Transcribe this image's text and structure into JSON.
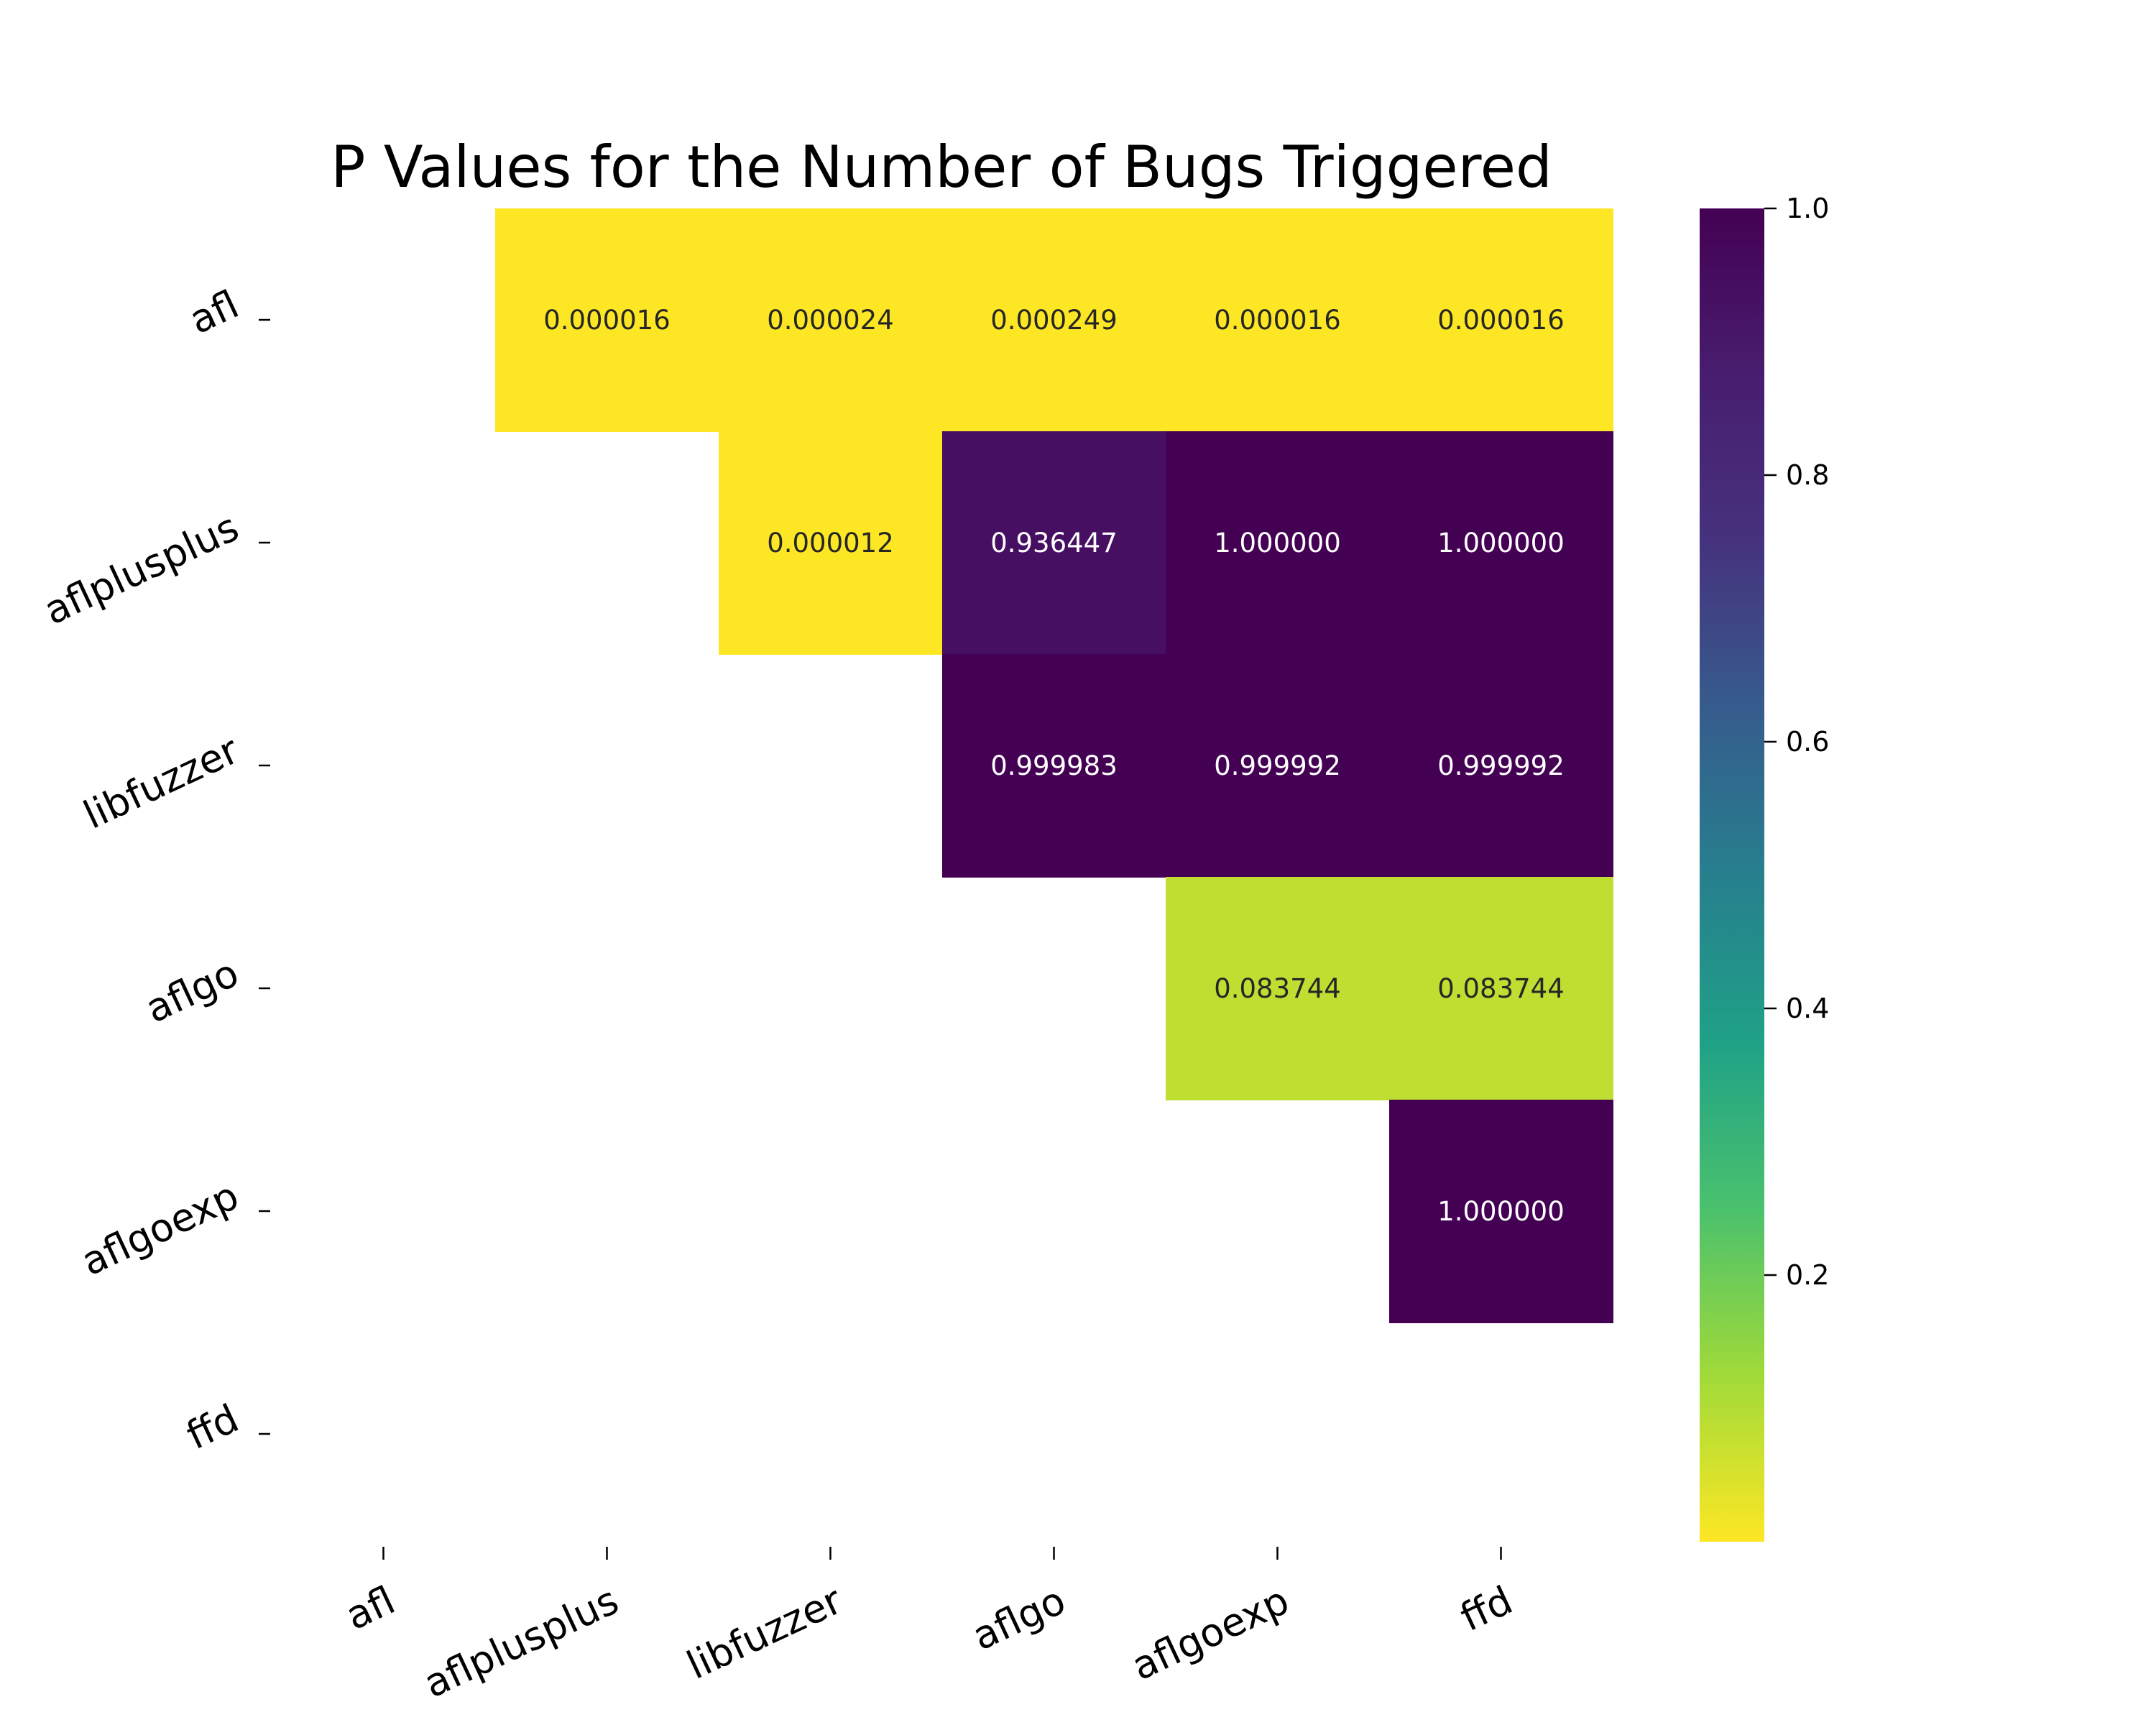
{
  "chart_data": {
    "type": "heatmap",
    "title": "P Values for the Number of Bugs Triggered",
    "x_labels": [
      "afl",
      "aflplusplus",
      "libfuzzer",
      "aflgo",
      "aflgoexp",
      "ffd"
    ],
    "y_labels": [
      "afl",
      "aflplusplus",
      "libfuzzer",
      "aflgo",
      "aflgoexp",
      "ffd"
    ],
    "cells": [
      {
        "row": 0,
        "col": 1,
        "value": 1.6e-05,
        "label": "0.000016"
      },
      {
        "row": 0,
        "col": 2,
        "value": 2.4e-05,
        "label": "0.000024"
      },
      {
        "row": 0,
        "col": 3,
        "value": 0.000249,
        "label": "0.000249"
      },
      {
        "row": 0,
        "col": 4,
        "value": 1.6e-05,
        "label": "0.000016"
      },
      {
        "row": 0,
        "col": 5,
        "value": 1.6e-05,
        "label": "0.000016"
      },
      {
        "row": 1,
        "col": 2,
        "value": 1.2e-05,
        "label": "0.000012"
      },
      {
        "row": 1,
        "col": 3,
        "value": 0.936447,
        "label": "0.936447"
      },
      {
        "row": 1,
        "col": 4,
        "value": 1.0,
        "label": "1.000000"
      },
      {
        "row": 1,
        "col": 5,
        "value": 1.0,
        "label": "1.000000"
      },
      {
        "row": 2,
        "col": 3,
        "value": 0.999983,
        "label": "0.999983"
      },
      {
        "row": 2,
        "col": 4,
        "value": 0.999992,
        "label": "0.999992"
      },
      {
        "row": 2,
        "col": 5,
        "value": 0.999992,
        "label": "0.999992"
      },
      {
        "row": 3,
        "col": 4,
        "value": 0.083744,
        "label": "0.083744"
      },
      {
        "row": 3,
        "col": 5,
        "value": 0.083744,
        "label": "0.083744"
      },
      {
        "row": 4,
        "col": 5,
        "value": 1.0,
        "label": "1.000000"
      }
    ],
    "colormap": "viridis_r",
    "colorbar": {
      "range": [
        1.2e-05,
        1.0
      ],
      "ticks": [
        0.2,
        0.4,
        0.6,
        0.8,
        1.0
      ],
      "tick_labels": [
        "0.2",
        "0.4",
        "0.6",
        "0.8",
        "1.0"
      ],
      "placement": "right"
    },
    "grid": false
  }
}
